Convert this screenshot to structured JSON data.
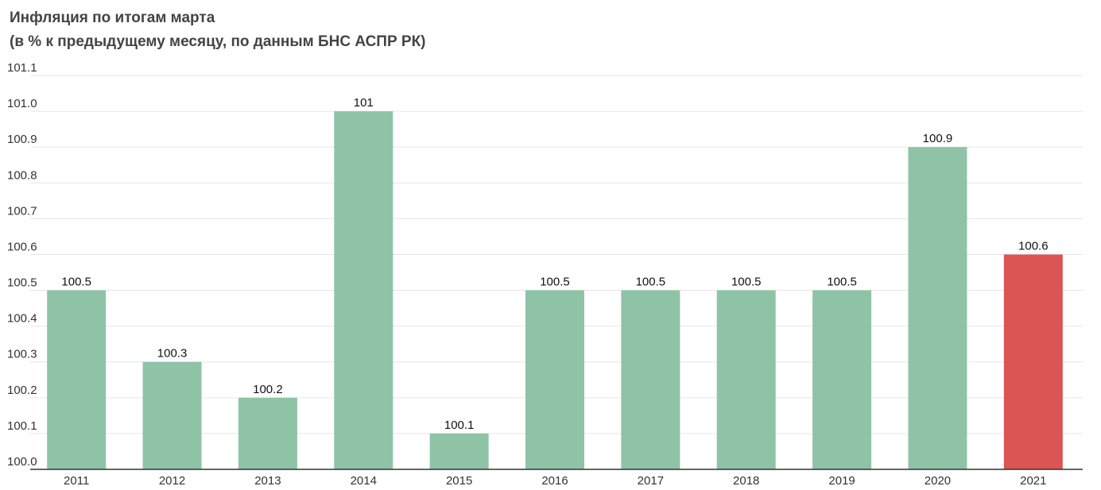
{
  "title": "Инфляция по итогам марта",
  "subtitle": "(в % к предыдущему месяцу, по данным БНС АСПР РК)",
  "chart_data": {
    "type": "bar",
    "categories": [
      "2011",
      "2012",
      "2013",
      "2014",
      "2015",
      "2016",
      "2017",
      "2018",
      "2019",
      "2020",
      "2021"
    ],
    "values": [
      100.5,
      100.3,
      100.2,
      101.0,
      100.1,
      100.5,
      100.5,
      100.5,
      100.5,
      100.9,
      100.6
    ],
    "data_labels": [
      "100.5",
      "100.3",
      "100.2",
      "101",
      "100.1",
      "100.5",
      "100.5",
      "100.5",
      "100.5",
      "100.9",
      "100.6"
    ],
    "ylim": [
      100.0,
      101.1
    ],
    "yticks": [
      "100.0",
      "100.1",
      "100.2",
      "100.3",
      "100.4",
      "100.5",
      "100.6",
      "100.7",
      "100.8",
      "100.9",
      "101.0",
      "101.1"
    ],
    "grid": true,
    "colors": {
      "default": "#8fc3a6",
      "highlight": "#dc5454",
      "highlight_category": "2021"
    }
  }
}
